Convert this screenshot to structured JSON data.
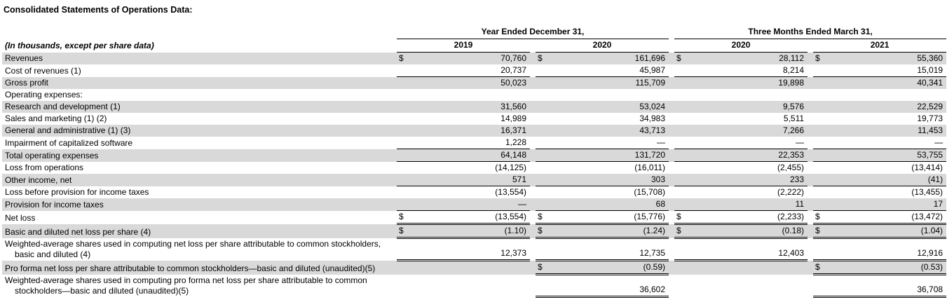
{
  "title": "Consolidated Statements of Operations Data:",
  "table": {
    "row_header_label": "(In thousands, except per share data)",
    "currency_symbol": "$",
    "shading_color": "#d9d9d9",
    "column_groups": [
      {
        "label": "Year Ended December 31,",
        "years": [
          "2019",
          "2020"
        ]
      },
      {
        "label": "Three Months Ended March 31,",
        "years": [
          "2020",
          "2021"
        ]
      }
    ],
    "rows": [
      {
        "label": "Revenues",
        "shaded": true,
        "border": "none",
        "dollars": [
          true,
          true,
          true,
          true
        ],
        "values": [
          "70,760",
          "161,696",
          "28,112",
          "55,360"
        ]
      },
      {
        "label": "Cost of revenues (1)",
        "shaded": false,
        "border": "single",
        "dollars": [
          false,
          false,
          false,
          false
        ],
        "values": [
          "20,737",
          "45,987",
          "8,214",
          "15,019"
        ]
      },
      {
        "label": "Gross profit",
        "shaded": true,
        "border": "none",
        "dollars": [
          false,
          false,
          false,
          false
        ],
        "values": [
          "50,023",
          "115,709",
          "19,898",
          "40,341"
        ]
      },
      {
        "label": "Operating expenses:",
        "shaded": false,
        "border": "none",
        "dollars": [
          false,
          false,
          false,
          false
        ],
        "values": [
          "",
          "",
          "",
          ""
        ]
      },
      {
        "label": "Research and development (1)",
        "shaded": true,
        "border": "none",
        "dollars": [
          false,
          false,
          false,
          false
        ],
        "values": [
          "31,560",
          "53,024",
          "9,576",
          "22,529"
        ]
      },
      {
        "label": "Sales and marketing (1) (2)",
        "shaded": false,
        "border": "none",
        "dollars": [
          false,
          false,
          false,
          false
        ],
        "values": [
          "14,989",
          "34,983",
          "5,511",
          "19,773"
        ]
      },
      {
        "label": "General and administrative (1) (3)",
        "shaded": true,
        "border": "none",
        "dollars": [
          false,
          false,
          false,
          false
        ],
        "values": [
          "16,371",
          "43,713",
          "7,266",
          "11,453"
        ]
      },
      {
        "label": "Impairment of capitalized software",
        "shaded": false,
        "border": "single",
        "dollars": [
          false,
          false,
          false,
          false
        ],
        "values": [
          "1,228",
          "—",
          "—",
          "—"
        ]
      },
      {
        "label": "Total operating expenses",
        "shaded": true,
        "border": "single",
        "dollars": [
          false,
          false,
          false,
          false
        ],
        "values": [
          "64,148",
          "131,720",
          "22,353",
          "53,755"
        ]
      },
      {
        "label": "Loss from operations",
        "shaded": false,
        "border": "none",
        "dollars": [
          false,
          false,
          false,
          false
        ],
        "values": [
          "(14,125)",
          "(16,011)",
          "(2,455)",
          "(13,414)"
        ]
      },
      {
        "label": "Other income, net",
        "shaded": true,
        "border": "single",
        "dollars": [
          false,
          false,
          false,
          false
        ],
        "values": [
          "571",
          "303",
          "233",
          "(41)"
        ]
      },
      {
        "label": "Loss before provision for income taxes",
        "shaded": false,
        "border": "none",
        "dollars": [
          false,
          false,
          false,
          false
        ],
        "values": [
          "(13,554)",
          "(15,708)",
          "(2,222)",
          "(13,455)"
        ]
      },
      {
        "label": "Provision for income taxes",
        "shaded": true,
        "border": "single",
        "dollars": [
          false,
          false,
          false,
          false
        ],
        "values": [
          "—",
          "68",
          "11",
          "17"
        ]
      },
      {
        "label": "Net loss",
        "shaded": false,
        "border": "double",
        "dollars": [
          true,
          true,
          true,
          true
        ],
        "values": [
          "(13,554)",
          "(15,776)",
          "(2,233)",
          "(13,472)"
        ]
      },
      {
        "label": "Basic and diluted net loss per share (4)",
        "shaded": true,
        "border": "double",
        "dollars": [
          true,
          true,
          true,
          true
        ],
        "values": [
          "(1.10)",
          "(1.24)",
          "(0.18)",
          "(1.04)"
        ]
      },
      {
        "label": "Weighted-average shares used in computing net loss per share attributable to common stockholders, basic and diluted (4)",
        "shaded": false,
        "border": "double",
        "dollars": [
          false,
          false,
          false,
          false
        ],
        "values": [
          "12,373",
          "12,735",
          "12,403",
          "12,916"
        ]
      },
      {
        "label": "Pro forma net loss per share attributable to common stockholders—basic and diluted (unaudited)(5)",
        "shaded": true,
        "border": "double",
        "dollars": [
          false,
          true,
          false,
          true
        ],
        "values": [
          "",
          "(0.59)",
          "",
          "(0.53)"
        ]
      },
      {
        "label": "Weighted-average shares used in computing pro forma net loss per share attributable to common stockholders—basic and diluted (unaudited)(5)",
        "shaded": false,
        "border": "double",
        "dollars": [
          false,
          false,
          false,
          false
        ],
        "values": [
          "",
          "36,602",
          "",
          "36,708"
        ]
      }
    ]
  }
}
